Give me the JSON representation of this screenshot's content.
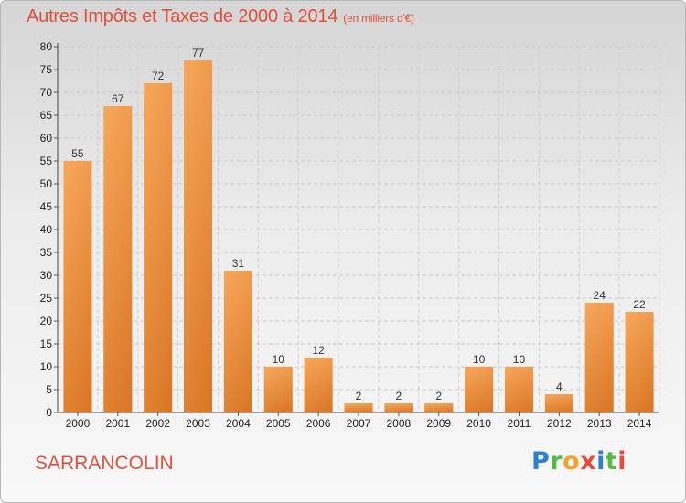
{
  "header": {
    "title": "Autres Impôts et Taxes de 2000 à 2014",
    "unit": "(en milliers d'€)"
  },
  "footer": {
    "commune": "SARRANCOLIN",
    "logo_text": "Proxiti"
  },
  "colors": {
    "title": "#e0503a",
    "bar_top": "#f6a559",
    "bar_bottom": "#d26b18",
    "grid": "#c8c8c8"
  },
  "chart_data": {
    "type": "bar",
    "title": "Autres Impôts et Taxes de 2000 à 2014",
    "subtitle": "(en milliers d'€)",
    "xlabel": "",
    "ylabel": "",
    "categories": [
      "2000",
      "2001",
      "2002",
      "2003",
      "2004",
      "2005",
      "2006",
      "2007",
      "2008",
      "2009",
      "2010",
      "2011",
      "2012",
      "2013",
      "2014"
    ],
    "values": [
      55,
      67,
      72,
      77,
      31,
      10,
      12,
      2,
      2,
      2,
      10,
      10,
      4,
      24,
      22
    ],
    "ylim": [
      0,
      80
    ],
    "yticks": [
      0,
      5,
      10,
      15,
      20,
      25,
      30,
      35,
      40,
      45,
      50,
      55,
      60,
      65,
      70,
      75,
      80
    ],
    "grid": true,
    "legend": "none"
  }
}
